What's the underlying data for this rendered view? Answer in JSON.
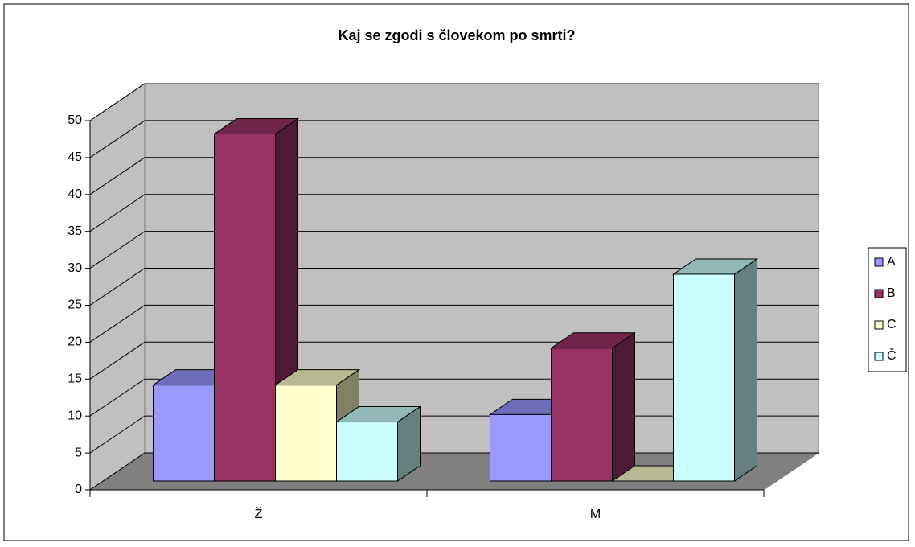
{
  "chart_data": {
    "type": "bar3d",
    "title": "Kaj se zgodi s človekom po smrti?",
    "categories": [
      "Ž",
      "M"
    ],
    "series": [
      {
        "name": "A",
        "color": "#9999ff",
        "values": [
          13,
          9
        ]
      },
      {
        "name": "B",
        "color": "#993366",
        "values": [
          47,
          18
        ]
      },
      {
        "name": "C",
        "color": "#ffffcc",
        "values": [
          13,
          0
        ]
      },
      {
        "name": "Č",
        "color": "#ccffff",
        "values": [
          8,
          28
        ]
      }
    ],
    "ylim": [
      0,
      50
    ],
    "yticks": [
      0,
      5,
      10,
      15,
      20,
      25,
      30,
      35,
      40,
      45,
      50
    ],
    "grid": true,
    "legend": "right"
  }
}
